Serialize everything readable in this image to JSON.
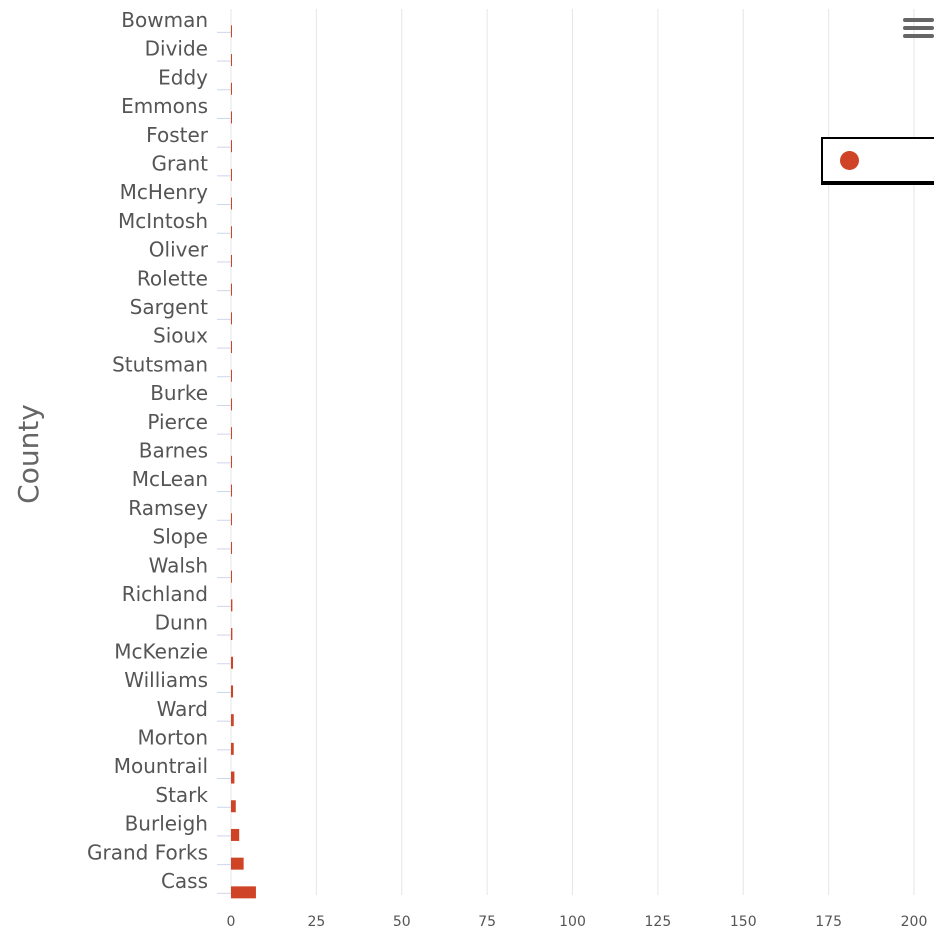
{
  "colors": {
    "bar": "#cf4427",
    "grid": "#e6e6e6",
    "tick": "#ccd6eb",
    "text": "#555555"
  },
  "menu": {
    "icon": "hamburger-menu-icon"
  },
  "legend": {
    "marker_color": "#cf4427",
    "label": ""
  },
  "chart_data": {
    "type": "bar",
    "orientation": "horizontal",
    "title": "",
    "xlabel": "",
    "ylabel": "County",
    "xlim": [
      0,
      200
    ],
    "x_ticks": [
      0,
      25,
      50,
      75,
      100,
      125,
      150,
      175,
      200
    ],
    "grid": true,
    "legend_position": "top-right",
    "categories": [
      "Bowman",
      "Divide",
      "Eddy",
      "Emmons",
      "Foster",
      "Grant",
      "McHenry",
      "McIntosh",
      "Oliver",
      "Rolette",
      "Sargent",
      "Sioux",
      "Stutsman",
      "Burke",
      "Pierce",
      "Barnes",
      "McLean",
      "Ramsey",
      "Slope",
      "Walsh",
      "Richland",
      "Dunn",
      "McKenzie",
      "Williams",
      "Ward",
      "Morton",
      "Mountrail",
      "Stark",
      "Burleigh",
      "Grand Forks",
      "Cass"
    ],
    "values": [
      0.2,
      0.2,
      0.2,
      0.2,
      0.2,
      0.2,
      0.2,
      0.2,
      0.2,
      0.2,
      0.2,
      0.2,
      0.2,
      0.3,
      0.3,
      0.3,
      0.3,
      0.3,
      0.3,
      0.3,
      0.4,
      0.4,
      0.6,
      0.6,
      0.8,
      0.8,
      1.0,
      1.4,
      2.4,
      3.7,
      7.3
    ]
  }
}
